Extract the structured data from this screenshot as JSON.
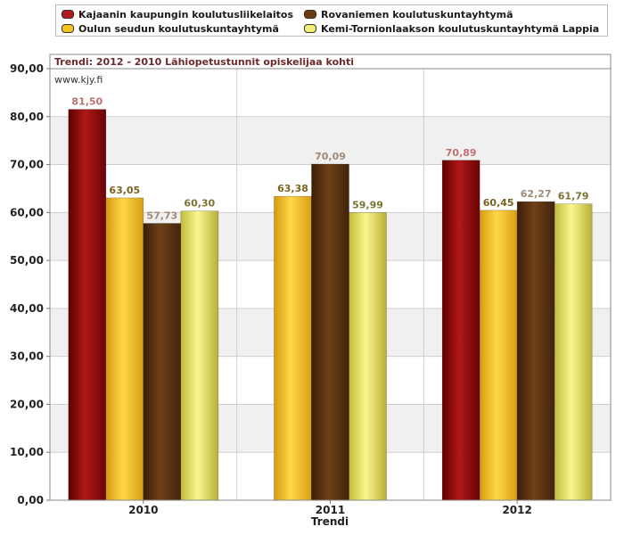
{
  "chart_data": {
    "type": "bar",
    "title": "Trendi: 2012 - 2010 Lähiopetustunnit opiskelijaa kohti",
    "subtitle": "www.kjy.fi",
    "xlabel": "Trendi",
    "ylabel": "",
    "ylim": [
      0,
      90
    ],
    "yticks": [
      "0,00",
      "10,00",
      "20,00",
      "30,00",
      "40,00",
      "50,00",
      "60,00",
      "70,00",
      "80,00",
      "90,00"
    ],
    "grid": true,
    "legend_position": "top",
    "categories": [
      "2010",
      "2011",
      "2012"
    ],
    "series": [
      {
        "name": "Kajaanin kaupungin koulutusliikelaitos",
        "color": "#8c0a0a",
        "label_color": "#c07070",
        "values": [
          81.5,
          null,
          70.89
        ],
        "labels": [
          "81,50",
          "",
          "70,89"
        ]
      },
      {
        "name": "Oulun seudun koulutuskuntayhtymä",
        "color": "#f2c322",
        "label_color": "#7a6320",
        "values": [
          63.05,
          63.38,
          60.45
        ],
        "labels": [
          "63,05",
          "63,38",
          "60,45"
        ]
      },
      {
        "name": "Rovaniemen koulutuskuntayhtymä",
        "color": "#5a3210",
        "label_color": "#a08a78",
        "values": [
          57.73,
          70.09,
          62.27
        ],
        "labels": [
          "57,73",
          "70,09",
          "62,27"
        ]
      },
      {
        "name": "Kemi-Tornionlaakson koulutuskuntayhtymä Lappia",
        "color": "#f2ee70",
        "label_color": "#7a7430",
        "values": [
          60.3,
          59.99,
          61.79
        ],
        "labels": [
          "60,30",
          "59,99",
          "61,79"
        ]
      }
    ]
  }
}
